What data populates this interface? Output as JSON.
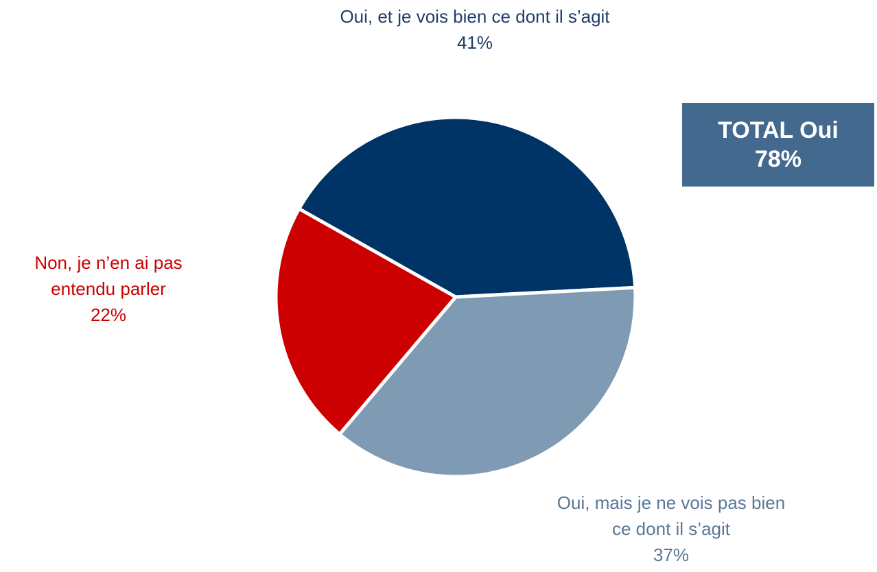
{
  "chart_data": {
    "type": "pie",
    "categories": [
      "Oui, et je vois bien ce dont il s’agit",
      "Oui, mais je ne vois pas bien ce dont il s’agit",
      "Non, je n’en ai pas entendu parler"
    ],
    "values": [
      41,
      37,
      22
    ],
    "value_labels": [
      "41%",
      "37%",
      "22%"
    ],
    "colors": [
      "#003366",
      "#7f9bb3",
      "#cc0000"
    ],
    "label_colors": [
      "#1f3d6b",
      "#5a7896",
      "#cc0000"
    ],
    "annotation": {
      "text": "TOTAL Oui",
      "value": "78%"
    }
  }
}
